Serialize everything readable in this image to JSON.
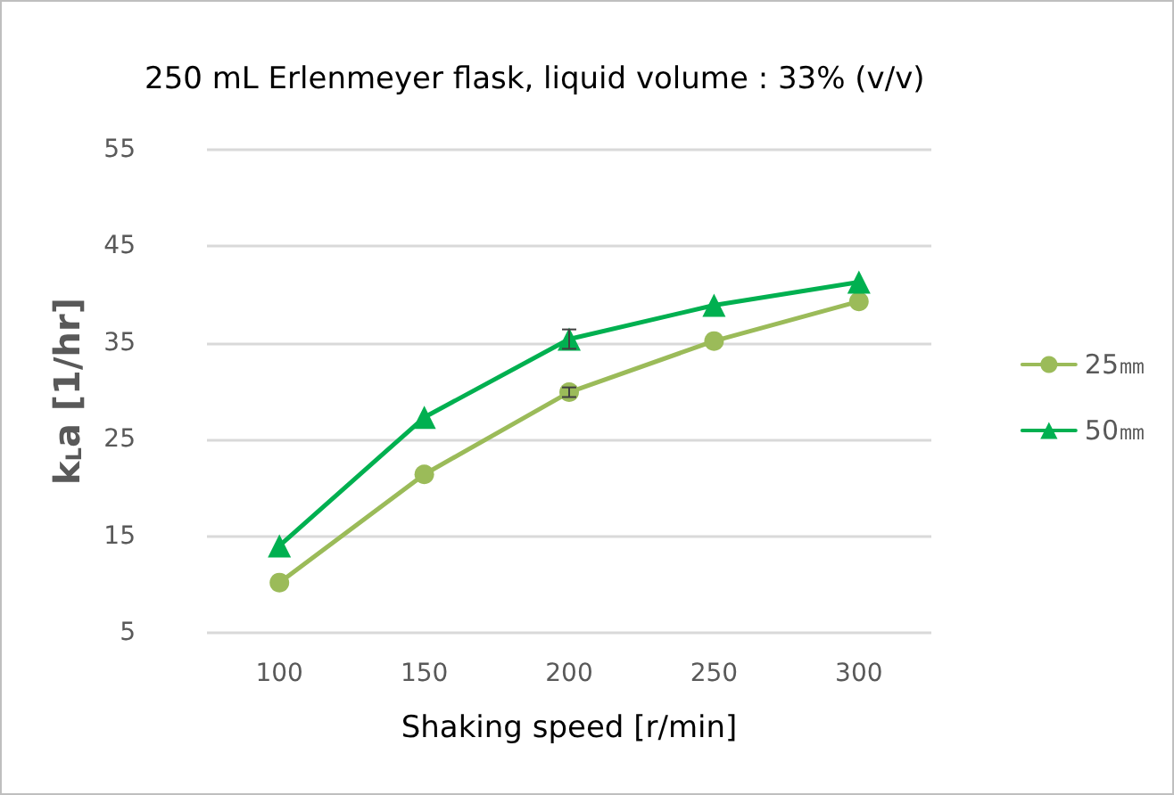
{
  "chart_data": {
    "type": "line",
    "title": "250 mL Erlenmeyer flask, liquid volume : 33% (v/v)",
    "xlabel": "Shaking speed [r/min]",
    "ylabel": "k$_{L}$a [1/hr]",
    "categories": [
      "100",
      "150",
      "200",
      "250",
      "300"
    ],
    "series": [
      {
        "name": "25㎜",
        "color": "#9bbb59",
        "marker": "circle",
        "values": [
          10.2,
          21.4,
          29.9,
          35.2,
          39.3
        ],
        "errors": [
          null,
          null,
          0.5,
          null,
          null
        ]
      },
      {
        "name": "50㎜",
        "color": "#00b050",
        "marker": "triangle",
        "values": [
          14.0,
          27.3,
          35.4,
          38.9,
          41.3
        ],
        "errors": [
          null,
          null,
          1,
          null,
          null
        ]
      }
    ],
    "ylim": [
      5,
      55
    ],
    "yticks": [
      5,
      15,
      25,
      35,
      45,
      55
    ],
    "grid": "y",
    "legend": "right"
  }
}
